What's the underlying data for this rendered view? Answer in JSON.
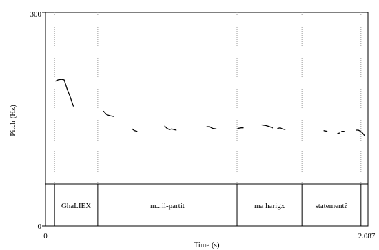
{
  "chart_data": {
    "type": "line",
    "xlabel": "Time (s)",
    "ylabel": "Pitch (Hz)",
    "xlim": [
      0,
      2.087
    ],
    "ylim": [
      0,
      300
    ],
    "x_tick_labels": [
      "0",
      "2.087"
    ],
    "y_tick_labels": [
      "0",
      "300"
    ],
    "grid": false,
    "boundaries": [
      0.0585,
      0.3384,
      1.2398,
      1.6596,
      2.0416
    ],
    "intervals": [
      {
        "label": "GhaLIEX",
        "start": 0.0585,
        "end": 0.3384
      },
      {
        "label": "m...il-partit",
        "start": 0.3384,
        "end": 1.2398
      },
      {
        "label": "ma harigx",
        "start": 1.2398,
        "end": 1.6596
      },
      {
        "label": "statement?",
        "start": 1.6596,
        "end": 2.0416
      }
    ],
    "pitch_segments": [
      [
        [
          0.066,
          180
        ],
        [
          0.082,
          182
        ],
        [
          0.102,
          183
        ],
        [
          0.121,
          182
        ],
        [
          0.14,
          166
        ],
        [
          0.16,
          152
        ],
        [
          0.18,
          136
        ]
      ],
      [
        [
          0.376,
          127
        ],
        [
          0.397,
          121
        ],
        [
          0.422,
          119
        ],
        [
          0.442,
          118
        ]
      ],
      [
        [
          0.561,
          96
        ],
        [
          0.577,
          93
        ],
        [
          0.592,
          92
        ]
      ],
      [
        [
          0.772,
          101
        ],
        [
          0.787,
          97
        ],
        [
          0.802,
          95
        ],
        [
          0.817,
          96
        ],
        [
          0.833,
          95
        ],
        [
          0.846,
          94
        ]
      ],
      [
        [
          1.045,
          100
        ],
        [
          1.062,
          100
        ],
        [
          1.082,
          97
        ],
        [
          1.105,
          96
        ]
      ],
      [
        [
          1.245,
          97
        ],
        [
          1.267,
          98
        ],
        [
          1.28,
          98
        ]
      ],
      [
        [
          1.4,
          103
        ],
        [
          1.425,
          102
        ],
        [
          1.45,
          100
        ],
        [
          1.469,
          98
        ]
      ],
      [
        [
          1.503,
          97
        ],
        [
          1.519,
          98
        ],
        [
          1.534,
          96
        ],
        [
          1.55,
          95
        ]
      ],
      [
        [
          1.802,
          93
        ],
        [
          1.822,
          92
        ]
      ],
      [
        [
          1.89,
          88
        ],
        [
          1.902,
          89
        ]
      ],
      [
        [
          1.917,
          92
        ],
        [
          1.932,
          92
        ]
      ],
      [
        [
          2.01,
          94
        ],
        [
          2.024,
          94
        ],
        [
          2.039,
          92
        ],
        [
          2.052,
          89
        ],
        [
          2.063,
          85
        ]
      ]
    ]
  }
}
